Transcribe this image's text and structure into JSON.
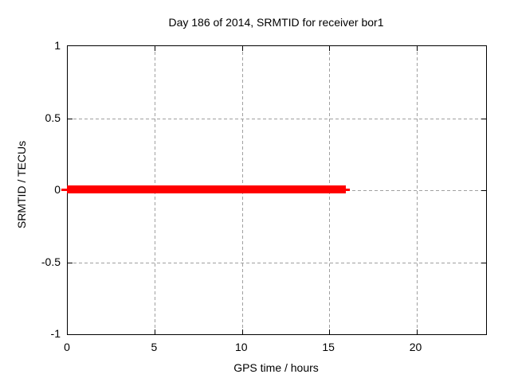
{
  "chart_data": {
    "type": "line",
    "title": "Day 186 of 2014, SRMTID for receiver bor1",
    "xlabel": "GPS time / hours",
    "ylabel": "SRMTID / TECUs",
    "xlim": [
      0,
      24
    ],
    "ylim": [
      -1,
      1
    ],
    "xticks": [
      0,
      5,
      10,
      15,
      20
    ],
    "xtick_labels": [
      "0",
      "5",
      "10",
      "15",
      "20"
    ],
    "yticks": [
      1,
      0.5,
      0,
      -0.5,
      -1
    ],
    "ytick_labels": [
      "1",
      "0.5",
      "0",
      "-0.5",
      "-1"
    ],
    "grid": true,
    "legend": false,
    "series": [
      {
        "name": "SRMTID",
        "color": "#ff0000",
        "style": "thick-horizontal-line",
        "x_start": 0,
        "x_end": 16,
        "y_value": 0,
        "description": "constant value 0 TECUs from GPS hour 0 to GPS hour 16"
      }
    ]
  },
  "colors": {
    "background": "#ffffff",
    "axis": "#000000",
    "grid": "#a0a0a0",
    "text": "#000000",
    "series": "#ff0000"
  }
}
